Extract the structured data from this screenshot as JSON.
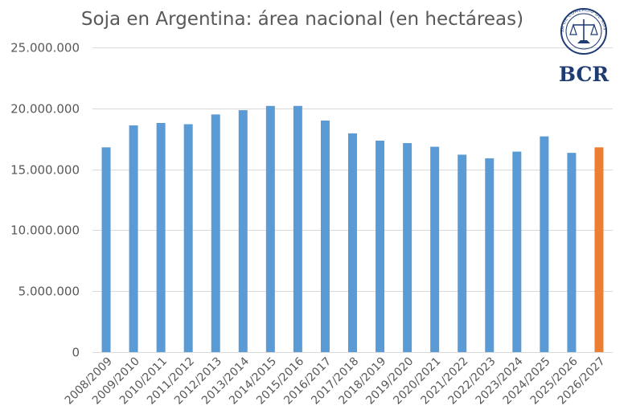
{
  "chart_data": {
    "type": "bar",
    "title": "Soja en Argentina: área nacional (en hectáreas)",
    "xlabel": "",
    "ylabel": "",
    "ylim": [
      0,
      25000000
    ],
    "yticks": [
      0,
      5000000,
      10000000,
      15000000,
      20000000,
      25000000
    ],
    "ytick_labels": [
      "0",
      "5.000.000",
      "10.000.000",
      "15.000.000",
      "20.000.000",
      "25.000.000"
    ],
    "grid": true,
    "legend": "none",
    "categories": [
      "2008/2009",
      "2009/2010",
      "2010/2011",
      "2011/2012",
      "2012/2013",
      "2013/2014",
      "2014/2015",
      "2015/2016",
      "2016/2017",
      "2017/2018",
      "2018/2019",
      "2019/2020",
      "2020/2021",
      "2021/2022",
      "2022/2023",
      "2023/2024",
      "2024/2025",
      "2025/2026",
      "2026/2027"
    ],
    "values": [
      16800000,
      18600000,
      18800000,
      18700000,
      19500000,
      19850000,
      20200000,
      20200000,
      19000000,
      17950000,
      17350000,
      17150000,
      16850000,
      16200000,
      15900000,
      16450000,
      17700000,
      16350000,
      16800000
    ],
    "colors": {
      "bar": "#5b9bd5",
      "highlight": "#ed7d31"
    },
    "highlight_index": 18
  },
  "logo": {
    "text": "BCR",
    "seal_text": "BOLSA DE COMERCIO DE ROSARIO",
    "color": "#1f3b73"
  }
}
